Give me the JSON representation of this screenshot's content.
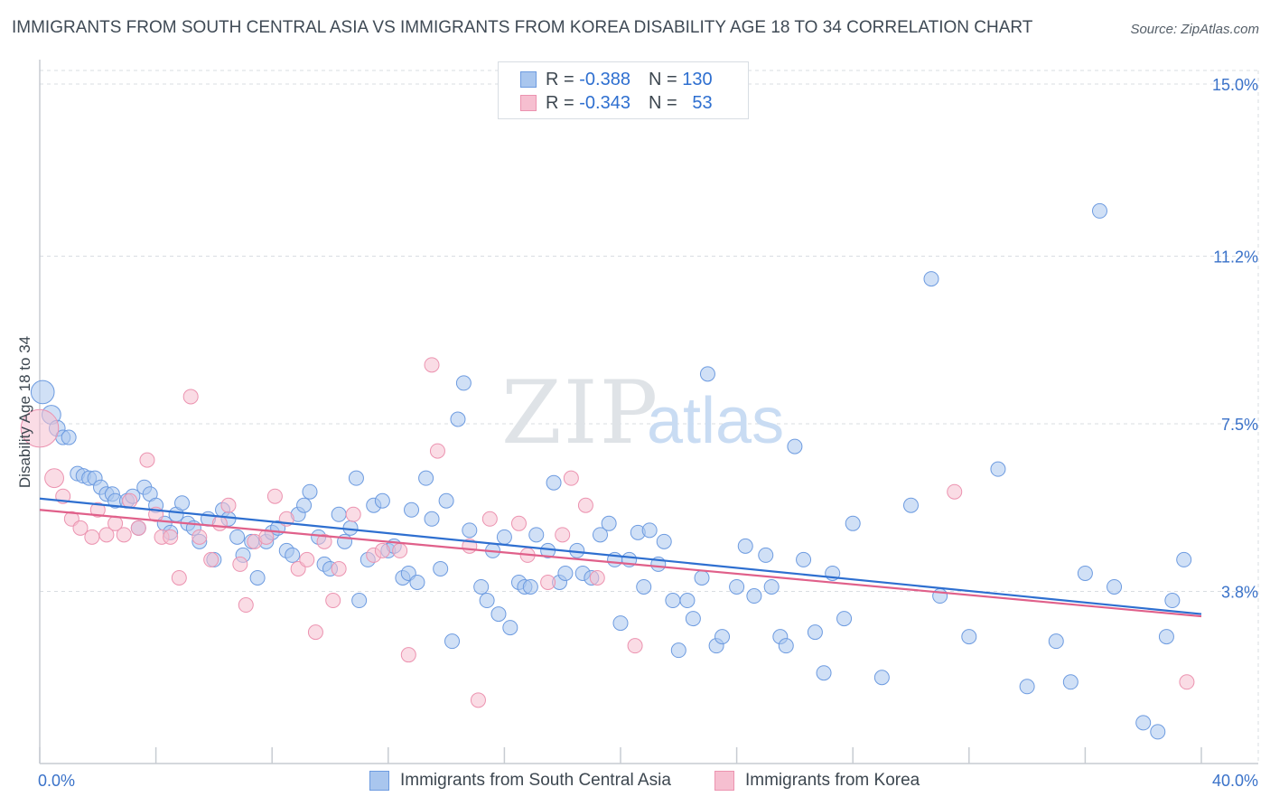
{
  "title": "IMMIGRANTS FROM SOUTH CENTRAL ASIA VS IMMIGRANTS FROM KOREA DISABILITY AGE 18 TO 34 CORRELATION CHART",
  "source": "Source: ZipAtlas.com",
  "watermark": {
    "zip": "ZIP",
    "atlas": "atlas"
  },
  "legend": {
    "rows": [
      {
        "r_label": "R =",
        "r_value": "-0.388",
        "n_label": "N =",
        "n_value": "130"
      },
      {
        "r_label": "R =",
        "r_value": "-0.343",
        "n_label": "N =",
        "n_value": "53"
      }
    ]
  },
  "colors": {
    "blue_fill": "#a9c6ee",
    "blue_stroke": "#6d9be0",
    "blue_line": "#2e6fd0",
    "pink_fill": "#f6bfd0",
    "pink_stroke": "#ec93b0",
    "pink_line": "#e0608a",
    "axis_label": "#3a72c9",
    "grid": "#d9dde2"
  },
  "chart_data": {
    "type": "scatter",
    "title": "IMMIGRANTS FROM SOUTH CENTRAL ASIA VS IMMIGRANTS FROM KOREA DISABILITY AGE 18 TO 34 CORRELATION CHART",
    "xlabel": "",
    "ylabel": "Disability Age 18 to 34",
    "xlim": [
      0,
      40
    ],
    "ylim": [
      0,
      15.3
    ],
    "x_tick_labels": [
      {
        "value": 0,
        "label": "0.0%"
      },
      {
        "value": 40,
        "label": "40.0%"
      }
    ],
    "y_ticks": [
      {
        "value": 3.8,
        "label": "3.8%"
      },
      {
        "value": 7.5,
        "label": "7.5%"
      },
      {
        "value": 11.2,
        "label": "11.2%"
      },
      {
        "value": 15.0,
        "label": "15.0%"
      }
    ],
    "x_minor_ticks": [
      0,
      4,
      8,
      12,
      16,
      20,
      24,
      28,
      32,
      36,
      40
    ],
    "series": [
      {
        "name": "Immigrants from South Central Asia",
        "r": -0.388,
        "n": 130,
        "trend": {
          "x": [
            0,
            40
          ],
          "y": [
            5.85,
            3.3
          ]
        },
        "points": [
          [
            0.1,
            8.2,
            1.6
          ],
          [
            0.4,
            7.7,
            1.3
          ],
          [
            0.6,
            7.4,
            1.1
          ],
          [
            0.8,
            7.2,
            1.0
          ],
          [
            1.0,
            7.2,
            1.0
          ],
          [
            1.3,
            6.4,
            1.0
          ],
          [
            1.5,
            6.35,
            1.0
          ],
          [
            1.7,
            6.3,
            1.0
          ],
          [
            1.9,
            6.3,
            1.0
          ],
          [
            2.1,
            6.1,
            1.0
          ],
          [
            2.3,
            5.95,
            1.0
          ],
          [
            2.5,
            5.95,
            1.0
          ],
          [
            2.6,
            5.8,
            1.0
          ],
          [
            3.0,
            5.8,
            1.0
          ],
          [
            3.2,
            5.9,
            1.0
          ],
          [
            3.4,
            5.2,
            1.0
          ],
          [
            3.6,
            6.1,
            1.0
          ],
          [
            3.8,
            5.95,
            1.0
          ],
          [
            4.0,
            5.7,
            1.0
          ],
          [
            4.3,
            5.3,
            1.0
          ],
          [
            4.5,
            5.1,
            1.0
          ],
          [
            4.7,
            5.5,
            1.0
          ],
          [
            4.9,
            5.75,
            1.0
          ],
          [
            5.1,
            5.3,
            1.0
          ],
          [
            5.3,
            5.2,
            1.0
          ],
          [
            5.5,
            4.9,
            1.0
          ],
          [
            5.8,
            5.4,
            1.0
          ],
          [
            6.0,
            4.5,
            1.0
          ],
          [
            6.3,
            5.6,
            1.0
          ],
          [
            6.5,
            5.4,
            1.0
          ],
          [
            6.8,
            5.0,
            1.0
          ],
          [
            7.0,
            4.6,
            1.0
          ],
          [
            7.3,
            4.9,
            1.0
          ],
          [
            7.5,
            4.1,
            1.0
          ],
          [
            7.8,
            4.9,
            1.0
          ],
          [
            8.0,
            5.1,
            1.0
          ],
          [
            8.2,
            5.2,
            1.0
          ],
          [
            8.5,
            4.7,
            1.0
          ],
          [
            8.7,
            4.6,
            1.0
          ],
          [
            8.9,
            5.5,
            1.0
          ],
          [
            9.1,
            5.7,
            1.0
          ],
          [
            9.3,
            6.0,
            1.0
          ],
          [
            9.6,
            5.0,
            1.0
          ],
          [
            9.8,
            4.4,
            1.0
          ],
          [
            10.0,
            4.3,
            1.0
          ],
          [
            10.3,
            5.5,
            1.0
          ],
          [
            10.5,
            4.9,
            1.0
          ],
          [
            10.7,
            5.2,
            1.0
          ],
          [
            10.9,
            6.3,
            1.0
          ],
          [
            11.0,
            3.6,
            1.0
          ],
          [
            11.3,
            4.5,
            1.0
          ],
          [
            11.5,
            5.7,
            1.0
          ],
          [
            11.8,
            5.8,
            1.0
          ],
          [
            12.0,
            4.7,
            1.0
          ],
          [
            12.2,
            4.8,
            1.0
          ],
          [
            12.5,
            4.1,
            1.0
          ],
          [
            12.7,
            4.2,
            1.0
          ],
          [
            12.8,
            5.6,
            1.0
          ],
          [
            13.0,
            4.0,
            1.0
          ],
          [
            13.3,
            6.3,
            1.0
          ],
          [
            13.5,
            5.4,
            1.0
          ],
          [
            13.8,
            4.3,
            1.0
          ],
          [
            14.0,
            5.8,
            1.0
          ],
          [
            14.2,
            2.7,
            1.0
          ],
          [
            14.4,
            7.6,
            1.0
          ],
          [
            14.6,
            8.4,
            1.0
          ],
          [
            14.8,
            5.15,
            1.0
          ],
          [
            15.2,
            3.9,
            1.0
          ],
          [
            15.4,
            3.6,
            1.0
          ],
          [
            15.6,
            4.7,
            1.0
          ],
          [
            15.8,
            3.3,
            1.0
          ],
          [
            16.0,
            5.0,
            1.0
          ],
          [
            16.2,
            3.0,
            1.0
          ],
          [
            16.5,
            4.0,
            1.0
          ],
          [
            16.7,
            3.9,
            1.0
          ],
          [
            16.9,
            3.9,
            1.0
          ],
          [
            17.1,
            5.05,
            1.0
          ],
          [
            17.5,
            4.7,
            1.0
          ],
          [
            17.7,
            6.2,
            1.0
          ],
          [
            17.9,
            4.0,
            1.0
          ],
          [
            18.1,
            4.2,
            1.0
          ],
          [
            18.5,
            4.7,
            1.0
          ],
          [
            18.7,
            4.2,
            1.0
          ],
          [
            19.0,
            4.1,
            1.0
          ],
          [
            19.3,
            5.05,
            1.0
          ],
          [
            19.6,
            5.3,
            1.0
          ],
          [
            19.8,
            4.5,
            1.0
          ],
          [
            20.0,
            3.1,
            1.0
          ],
          [
            20.3,
            4.5,
            1.0
          ],
          [
            20.6,
            5.1,
            1.0
          ],
          [
            20.8,
            3.9,
            1.0
          ],
          [
            21.0,
            5.15,
            1.0
          ],
          [
            21.3,
            4.4,
            1.0
          ],
          [
            21.5,
            4.9,
            1.0
          ],
          [
            21.8,
            3.6,
            1.0
          ],
          [
            22.0,
            2.5,
            1.0
          ],
          [
            22.3,
            3.6,
            1.0
          ],
          [
            22.5,
            3.2,
            1.0
          ],
          [
            22.8,
            4.1,
            1.0
          ],
          [
            23.0,
            8.6,
            1.0
          ],
          [
            23.3,
            2.6,
            1.0
          ],
          [
            23.5,
            2.8,
            1.0
          ],
          [
            24.0,
            3.9,
            1.0
          ],
          [
            24.3,
            4.8,
            1.0
          ],
          [
            24.6,
            3.7,
            1.0
          ],
          [
            25.0,
            4.6,
            1.0
          ],
          [
            25.2,
            3.9,
            1.0
          ],
          [
            25.5,
            2.8,
            1.0
          ],
          [
            25.7,
            2.6,
            1.0
          ],
          [
            26.0,
            7.0,
            1.0
          ],
          [
            26.3,
            4.5,
            1.0
          ],
          [
            26.7,
            2.9,
            1.0
          ],
          [
            27.0,
            2.0,
            1.0
          ],
          [
            27.3,
            4.2,
            1.0
          ],
          [
            27.7,
            3.2,
            1.0
          ],
          [
            28.0,
            5.3,
            1.0
          ],
          [
            29.0,
            1.9,
            1.0
          ],
          [
            30.0,
            5.7,
            1.0
          ],
          [
            30.7,
            10.7,
            1.0
          ],
          [
            31.0,
            3.7,
            1.0
          ],
          [
            32.0,
            2.8,
            1.0
          ],
          [
            33.0,
            6.5,
            1.0
          ],
          [
            34.0,
            1.7,
            1.0
          ],
          [
            35.0,
            2.7,
            1.0
          ],
          [
            35.5,
            1.8,
            1.0
          ],
          [
            36.0,
            4.2,
            1.0
          ],
          [
            36.5,
            12.2,
            1.0
          ],
          [
            37.0,
            3.9,
            1.0
          ],
          [
            38.0,
            0.9,
            1.0
          ],
          [
            38.5,
            0.7,
            1.0
          ],
          [
            38.8,
            2.8,
            1.0
          ],
          [
            39.0,
            3.6,
            1.0
          ],
          [
            39.4,
            4.5,
            1.0
          ]
        ]
      },
      {
        "name": "Immigrants from Korea",
        "r": -0.343,
        "n": 53,
        "trend": {
          "x": [
            0,
            40
          ],
          "y": [
            5.6,
            3.25
          ]
        },
        "points": [
          [
            0.0,
            7.4,
            2.6
          ],
          [
            0.5,
            6.3,
            1.3
          ],
          [
            0.8,
            5.9,
            1.0
          ],
          [
            1.1,
            5.4,
            1.0
          ],
          [
            1.4,
            5.2,
            1.0
          ],
          [
            1.8,
            5.0,
            1.0
          ],
          [
            2.0,
            5.6,
            1.0
          ],
          [
            2.3,
            5.05,
            1.0
          ],
          [
            2.6,
            5.3,
            1.0
          ],
          [
            2.9,
            5.05,
            1.0
          ],
          [
            3.1,
            5.8,
            1.0
          ],
          [
            3.4,
            5.2,
            1.0
          ],
          [
            3.7,
            6.7,
            1.0
          ],
          [
            4.0,
            5.5,
            1.0
          ],
          [
            4.2,
            5.0,
            1.0
          ],
          [
            4.5,
            5.0,
            1.0
          ],
          [
            4.8,
            4.1,
            1.0
          ],
          [
            5.2,
            8.1,
            1.0
          ],
          [
            5.5,
            5.0,
            1.0
          ],
          [
            5.9,
            4.5,
            1.0
          ],
          [
            6.2,
            5.3,
            1.0
          ],
          [
            6.5,
            5.7,
            1.0
          ],
          [
            6.9,
            4.4,
            1.0
          ],
          [
            7.1,
            3.5,
            1.0
          ],
          [
            7.4,
            4.9,
            1.0
          ],
          [
            7.8,
            5.0,
            1.0
          ],
          [
            8.1,
            5.9,
            1.0
          ],
          [
            8.5,
            5.4,
            1.0
          ],
          [
            8.9,
            4.3,
            1.0
          ],
          [
            9.2,
            4.5,
            1.0
          ],
          [
            9.5,
            2.9,
            1.0
          ],
          [
            9.8,
            4.9,
            1.0
          ],
          [
            10.1,
            3.6,
            1.0
          ],
          [
            10.3,
            4.3,
            1.0
          ],
          [
            10.8,
            5.5,
            1.0
          ],
          [
            11.5,
            4.6,
            1.0
          ],
          [
            11.8,
            4.7,
            1.0
          ],
          [
            12.4,
            4.7,
            1.0
          ],
          [
            12.7,
            2.4,
            1.0
          ],
          [
            13.5,
            8.8,
            1.0
          ],
          [
            13.7,
            6.9,
            1.0
          ],
          [
            14.8,
            4.8,
            1.0
          ],
          [
            15.1,
            1.4,
            1.0
          ],
          [
            15.5,
            5.4,
            1.0
          ],
          [
            16.5,
            5.3,
            1.0
          ],
          [
            16.8,
            4.6,
            1.0
          ],
          [
            17.5,
            4.0,
            1.0
          ],
          [
            18.0,
            5.05,
            1.0
          ],
          [
            18.3,
            6.3,
            1.0
          ],
          [
            18.8,
            5.7,
            1.0
          ],
          [
            19.2,
            4.1,
            1.0
          ],
          [
            20.5,
            2.6,
            1.0
          ],
          [
            31.5,
            6.0,
            1.0
          ],
          [
            39.5,
            1.8,
            1.0
          ]
        ]
      }
    ]
  },
  "bottom_legend": [
    {
      "label": "Immigrants from South Central Asia"
    },
    {
      "label": "Immigrants from Korea"
    }
  ]
}
